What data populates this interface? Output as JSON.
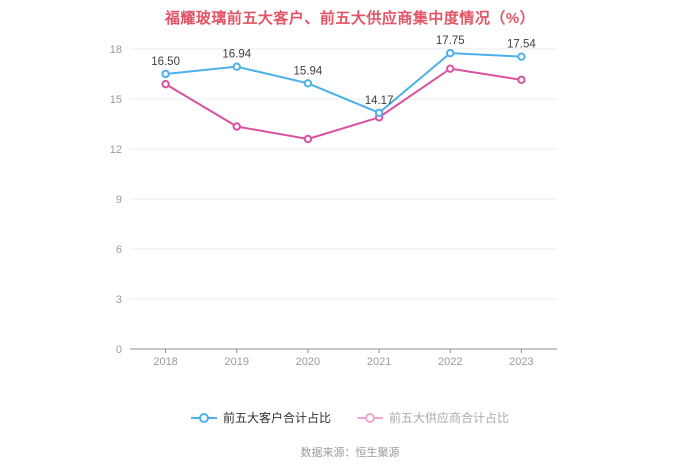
{
  "title": "福耀玻璃前五大客户、前五大供应商集中度情况（%）",
  "source": "数据来源：恒生聚源",
  "colors": {
    "title": "#e15566",
    "customers_line": "#4cb1ea",
    "suppliers_line": "#d9529f",
    "legend_active_text": "#333333",
    "legend_inactive_text": "#aaaaaa",
    "legend_inactive_marker": "#f0a6d0",
    "axis_text": "#9b9b9b",
    "data_label": "#3f3f3f",
    "gridline": "#e9ebf2",
    "axis_line": "#8e8e8e"
  },
  "legend": {
    "items": [
      {
        "label": "前五大客户合计占比",
        "state": "active"
      },
      {
        "label": "前五大供应商合计占比",
        "state": "faded"
      }
    ]
  },
  "chart_data": {
    "type": "line",
    "title": "福耀玻璃前五大客户、前五大供应商集中度情况（%）",
    "categories": [
      "2018",
      "2019",
      "2020",
      "2021",
      "2022",
      "2023"
    ],
    "series": [
      {
        "name": "前五大客户合计占比",
        "values": [
          16.5,
          16.94,
          15.94,
          14.17,
          17.75,
          17.54
        ],
        "color": "#4cb1ea",
        "labels_shown": true
      },
      {
        "name": "前五大供应商合计占比",
        "values": [
          15.89,
          13.35,
          12.6,
          13.9,
          16.82,
          16.15
        ],
        "color": "#d9529f",
        "labels_shown": false
      }
    ],
    "xlabel": "",
    "ylabel": "",
    "ylim": [
      0,
      18
    ],
    "yticks": [
      0,
      3,
      6,
      9,
      12,
      15,
      18
    ],
    "grid": true,
    "legend_position": "bottom"
  }
}
